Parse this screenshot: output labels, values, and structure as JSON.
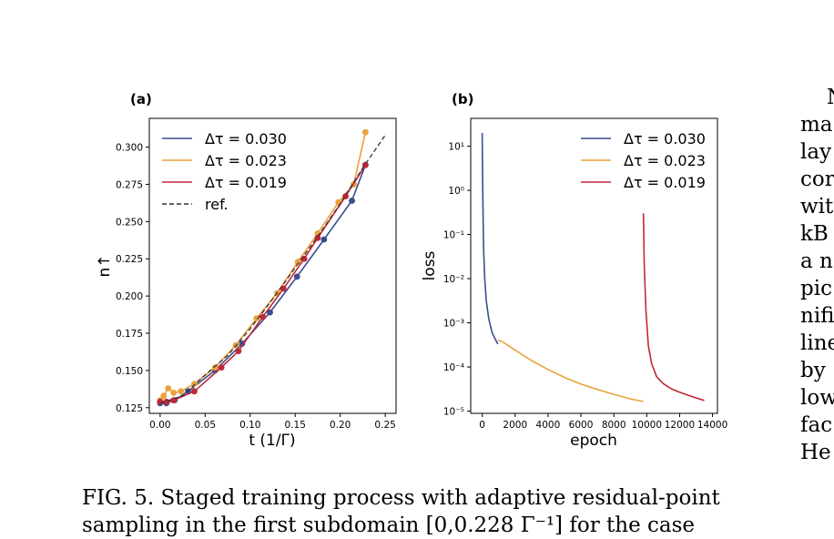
{
  "caption": {
    "line1": "FIG. 5. Staged training process with adaptive residual-point",
    "line2": "sampling in the first subdomain [0,0.228 Γ⁻¹] for the case"
  },
  "side_text": [
    "N",
    "ma",
    "lay",
    "cor",
    "wit",
    "kB",
    "a n",
    "pic",
    "nifi",
    "line",
    "by",
    "low",
    "fac",
    "He"
  ],
  "colors": {
    "blue": "#3b4d8f",
    "orange": "#e9a23b",
    "red": "#c0283a",
    "ref": "#333333"
  },
  "chart_data": [
    {
      "panel_label": "(a)",
      "type": "line",
      "xlabel": "t (1/Γ)",
      "ylabel": "n↑",
      "xlim": [
        -0.012,
        0.262
      ],
      "ylim": [
        0.1212,
        0.3193
      ],
      "xticks": [
        0.0,
        0.05,
        0.1,
        0.15,
        0.2,
        0.25
      ],
      "xtick_labels": [
        "0.00",
        "0.05",
        "0.10",
        "0.15",
        "0.20",
        "0.25"
      ],
      "yticks": [
        0.125,
        0.15,
        0.175,
        0.2,
        0.225,
        0.25,
        0.275,
        0.3
      ],
      "ytick_labels": [
        "0.125",
        "0.150",
        "0.175",
        "0.200",
        "0.225",
        "0.250",
        "0.275",
        "0.300"
      ],
      "legend_position": "top-left",
      "series": [
        {
          "name": "Δτ = 0.030",
          "color": "blue",
          "markers": true,
          "x": [
            0.0,
            0.007,
            0.016,
            0.031,
            0.061,
            0.091,
            0.122,
            0.152,
            0.182,
            0.213,
            0.228
          ],
          "y": [
            0.128,
            0.128,
            0.13,
            0.136,
            0.15,
            0.168,
            0.189,
            0.213,
            0.238,
            0.264,
            0.288
          ]
        },
        {
          "name": "Δτ = 0.023",
          "color": "orange",
          "markers": true,
          "x": [
            0.0,
            0.004,
            0.009,
            0.015,
            0.023,
            0.038,
            0.061,
            0.084,
            0.107,
            0.13,
            0.153,
            0.175,
            0.198,
            0.215,
            0.228
          ],
          "y": [
            0.13,
            0.133,
            0.138,
            0.135,
            0.136,
            0.141,
            0.152,
            0.167,
            0.185,
            0.202,
            0.223,
            0.242,
            0.263,
            0.275,
            0.31
          ]
        },
        {
          "name": "Δτ = 0.019",
          "color": "red",
          "markers": true,
          "x": [
            0.0,
            0.007,
            0.015,
            0.038,
            0.068,
            0.087,
            0.114,
            0.137,
            0.16,
            0.175,
            0.206,
            0.228
          ],
          "y": [
            0.129,
            0.129,
            0.13,
            0.136,
            0.152,
            0.163,
            0.186,
            0.205,
            0.225,
            0.239,
            0.267,
            0.288
          ]
        },
        {
          "name": "ref.",
          "color": "ref",
          "dashed": true,
          "markers": false,
          "x": [
            0.0,
            0.025,
            0.05,
            0.075,
            0.1,
            0.125,
            0.15,
            0.175,
            0.2,
            0.225,
            0.25
          ],
          "y": [
            0.128,
            0.133,
            0.147,
            0.16,
            0.178,
            0.198,
            0.219,
            0.24,
            0.262,
            0.286,
            0.308
          ]
        }
      ]
    },
    {
      "panel_label": "(b)",
      "type": "line",
      "xlabel": "epoch",
      "ylabel": "loss",
      "yscale": "log",
      "xlim": [
        -700,
        14300
      ],
      "ylim_log10": [
        -5.05,
        1.63
      ],
      "xticks": [
        0,
        2000,
        4000,
        6000,
        8000,
        10000,
        12000,
        14000
      ],
      "xtick_labels": [
        "0",
        "2000",
        "4000",
        "6000",
        "8000",
        "10000",
        "12000",
        "14000"
      ],
      "yticks": [
        1e-05,
        0.0001,
        0.001,
        0.01,
        0.1,
        1,
        10
      ],
      "ytick_labels": [
        "10⁻⁵",
        "10⁻⁴",
        "10⁻³",
        "10⁻²",
        "10⁻¹",
        "10⁰",
        "10¹"
      ],
      "legend_position": "top-right",
      "series": [
        {
          "name": "Δτ = 0.030",
          "color": "blue",
          "x": [
            0,
            30,
            80,
            150,
            250,
            400,
            600,
            800,
            950
          ],
          "y": [
            20,
            1,
            0.05,
            0.01,
            0.003,
            0.0012,
            0.0006,
            0.00042,
            0.00033
          ]
        },
        {
          "name": "Δτ = 0.023",
          "color": "orange",
          "x": [
            950,
            1200,
            1500,
            2000,
            3000,
            4000,
            5000,
            6000,
            7000,
            8000,
            9000,
            9800
          ],
          "y": [
            0.0004,
            0.00038,
            0.00032,
            0.00024,
            0.00014,
            8.8e-05,
            5.8e-05,
            4.1e-05,
            3.1e-05,
            2.4e-05,
            1.9e-05,
            1.65e-05
          ]
        },
        {
          "name": "Δτ = 0.019",
          "color": "red",
          "x": [
            9800,
            9850,
            9950,
            10100,
            10300,
            10600,
            11000,
            11500,
            12000,
            12500,
            13000,
            13500
          ],
          "y": [
            0.3,
            0.02,
            0.002,
            0.0003,
            0.00012,
            6e-05,
            4.2e-05,
            3.2e-05,
            2.7e-05,
            2.3e-05,
            2e-05,
            1.75e-05
          ]
        }
      ]
    }
  ]
}
